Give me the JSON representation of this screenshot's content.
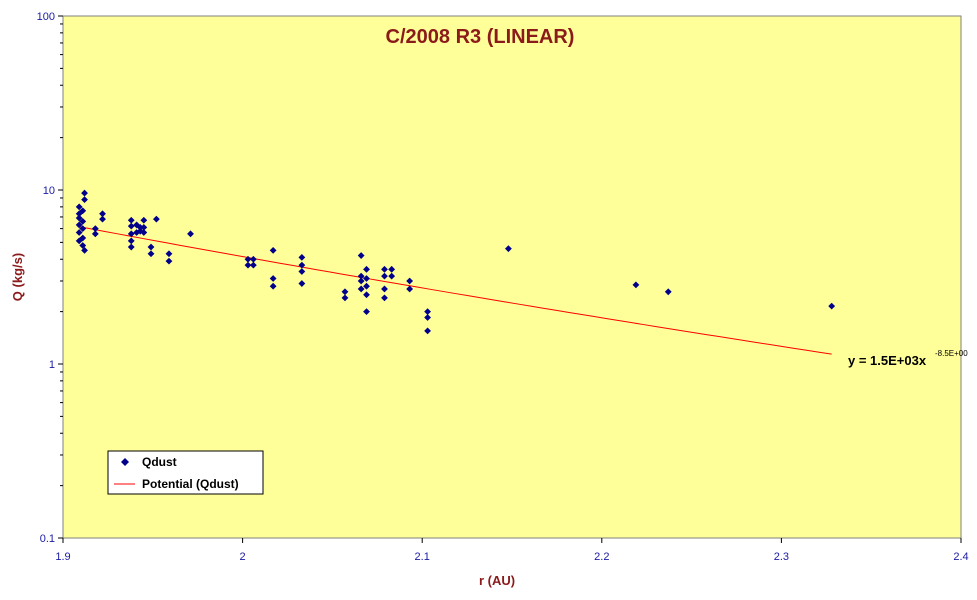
{
  "chart_data": {
    "type": "scatter",
    "title": "C/2008 R3 (LINEAR)",
    "xlabel": "r (AU)",
    "ylabel": "Q (kg/s)",
    "xlim": [
      1.9,
      2.4
    ],
    "ylim": [
      0.1,
      100
    ],
    "y_scale": "log",
    "x_ticks": [
      "1.9",
      "2",
      "2.1",
      "2.2",
      "2.3",
      "2.4"
    ],
    "y_ticks": [
      "0.1",
      "1",
      "10",
      "100"
    ],
    "plot_background": "#ffff99",
    "grid": false,
    "legend_position": "bottom-left",
    "series": [
      {
        "name": "Qdust",
        "marker": "diamond",
        "color": "#00008b",
        "points": [
          [
            1.909,
            8.0
          ],
          [
            1.909,
            7.3
          ],
          [
            1.909,
            6.9
          ],
          [
            1.909,
            6.3
          ],
          [
            1.909,
            5.7
          ],
          [
            1.909,
            5.1
          ],
          [
            1.911,
            7.6
          ],
          [
            1.911,
            6.6
          ],
          [
            1.911,
            6.0
          ],
          [
            1.911,
            5.3
          ],
          [
            1.911,
            4.8
          ],
          [
            1.912,
            9.6
          ],
          [
            1.912,
            8.8
          ],
          [
            1.912,
            4.5
          ],
          [
            1.918,
            6.0
          ],
          [
            1.918,
            5.6
          ],
          [
            1.922,
            7.3
          ],
          [
            1.922,
            6.8
          ],
          [
            1.938,
            6.7
          ],
          [
            1.938,
            6.2
          ],
          [
            1.938,
            5.6
          ],
          [
            1.938,
            5.1
          ],
          [
            1.938,
            4.7
          ],
          [
            1.941,
            6.3
          ],
          [
            1.941,
            5.7
          ],
          [
            1.943,
            6.1
          ],
          [
            1.943,
            5.8
          ],
          [
            1.945,
            6.7
          ],
          [
            1.945,
            6.1
          ],
          [
            1.945,
            5.7
          ],
          [
            1.949,
            4.7
          ],
          [
            1.949,
            4.3
          ],
          [
            1.952,
            6.8
          ],
          [
            1.959,
            4.3
          ],
          [
            1.959,
            3.9
          ],
          [
            1.971,
            5.6
          ],
          [
            2.003,
            4.0
          ],
          [
            2.003,
            3.7
          ],
          [
            2.006,
            4.0
          ],
          [
            2.006,
            3.7
          ],
          [
            2.017,
            4.5
          ],
          [
            2.017,
            3.1
          ],
          [
            2.017,
            2.8
          ],
          [
            2.033,
            4.1
          ],
          [
            2.033,
            3.7
          ],
          [
            2.033,
            3.4
          ],
          [
            2.033,
            2.9
          ],
          [
            2.057,
            2.6
          ],
          [
            2.057,
            2.4
          ],
          [
            2.066,
            4.2
          ],
          [
            2.066,
            3.2
          ],
          [
            2.066,
            3.0
          ],
          [
            2.066,
            2.7
          ],
          [
            2.069,
            3.5
          ],
          [
            2.069,
            3.1
          ],
          [
            2.069,
            2.8
          ],
          [
            2.069,
            2.5
          ],
          [
            2.069,
            2.0
          ],
          [
            2.079,
            3.5
          ],
          [
            2.079,
            3.2
          ],
          [
            2.079,
            2.7
          ],
          [
            2.079,
            2.4
          ],
          [
            2.083,
            3.5
          ],
          [
            2.083,
            3.2
          ],
          [
            2.093,
            3.0
          ],
          [
            2.093,
            2.7
          ],
          [
            2.103,
            2.0
          ],
          [
            2.103,
            1.85
          ],
          [
            2.103,
            1.55
          ],
          [
            2.148,
            4.6
          ],
          [
            2.219,
            2.85
          ],
          [
            2.237,
            2.6
          ],
          [
            2.328,
            2.15
          ]
        ]
      },
      {
        "name": "Potential (Qdust)",
        "type": "line",
        "color": "#ff0000",
        "coefficient": 1500,
        "exponent": -8.5,
        "x_range": [
          1.909,
          2.328
        ]
      }
    ],
    "trendline_equation": {
      "prefix": "y = 1.5E+03x",
      "exponent_label": "-8.5E+00"
    },
    "legend": [
      "Qdust",
      "Potential (Qdust)"
    ]
  }
}
